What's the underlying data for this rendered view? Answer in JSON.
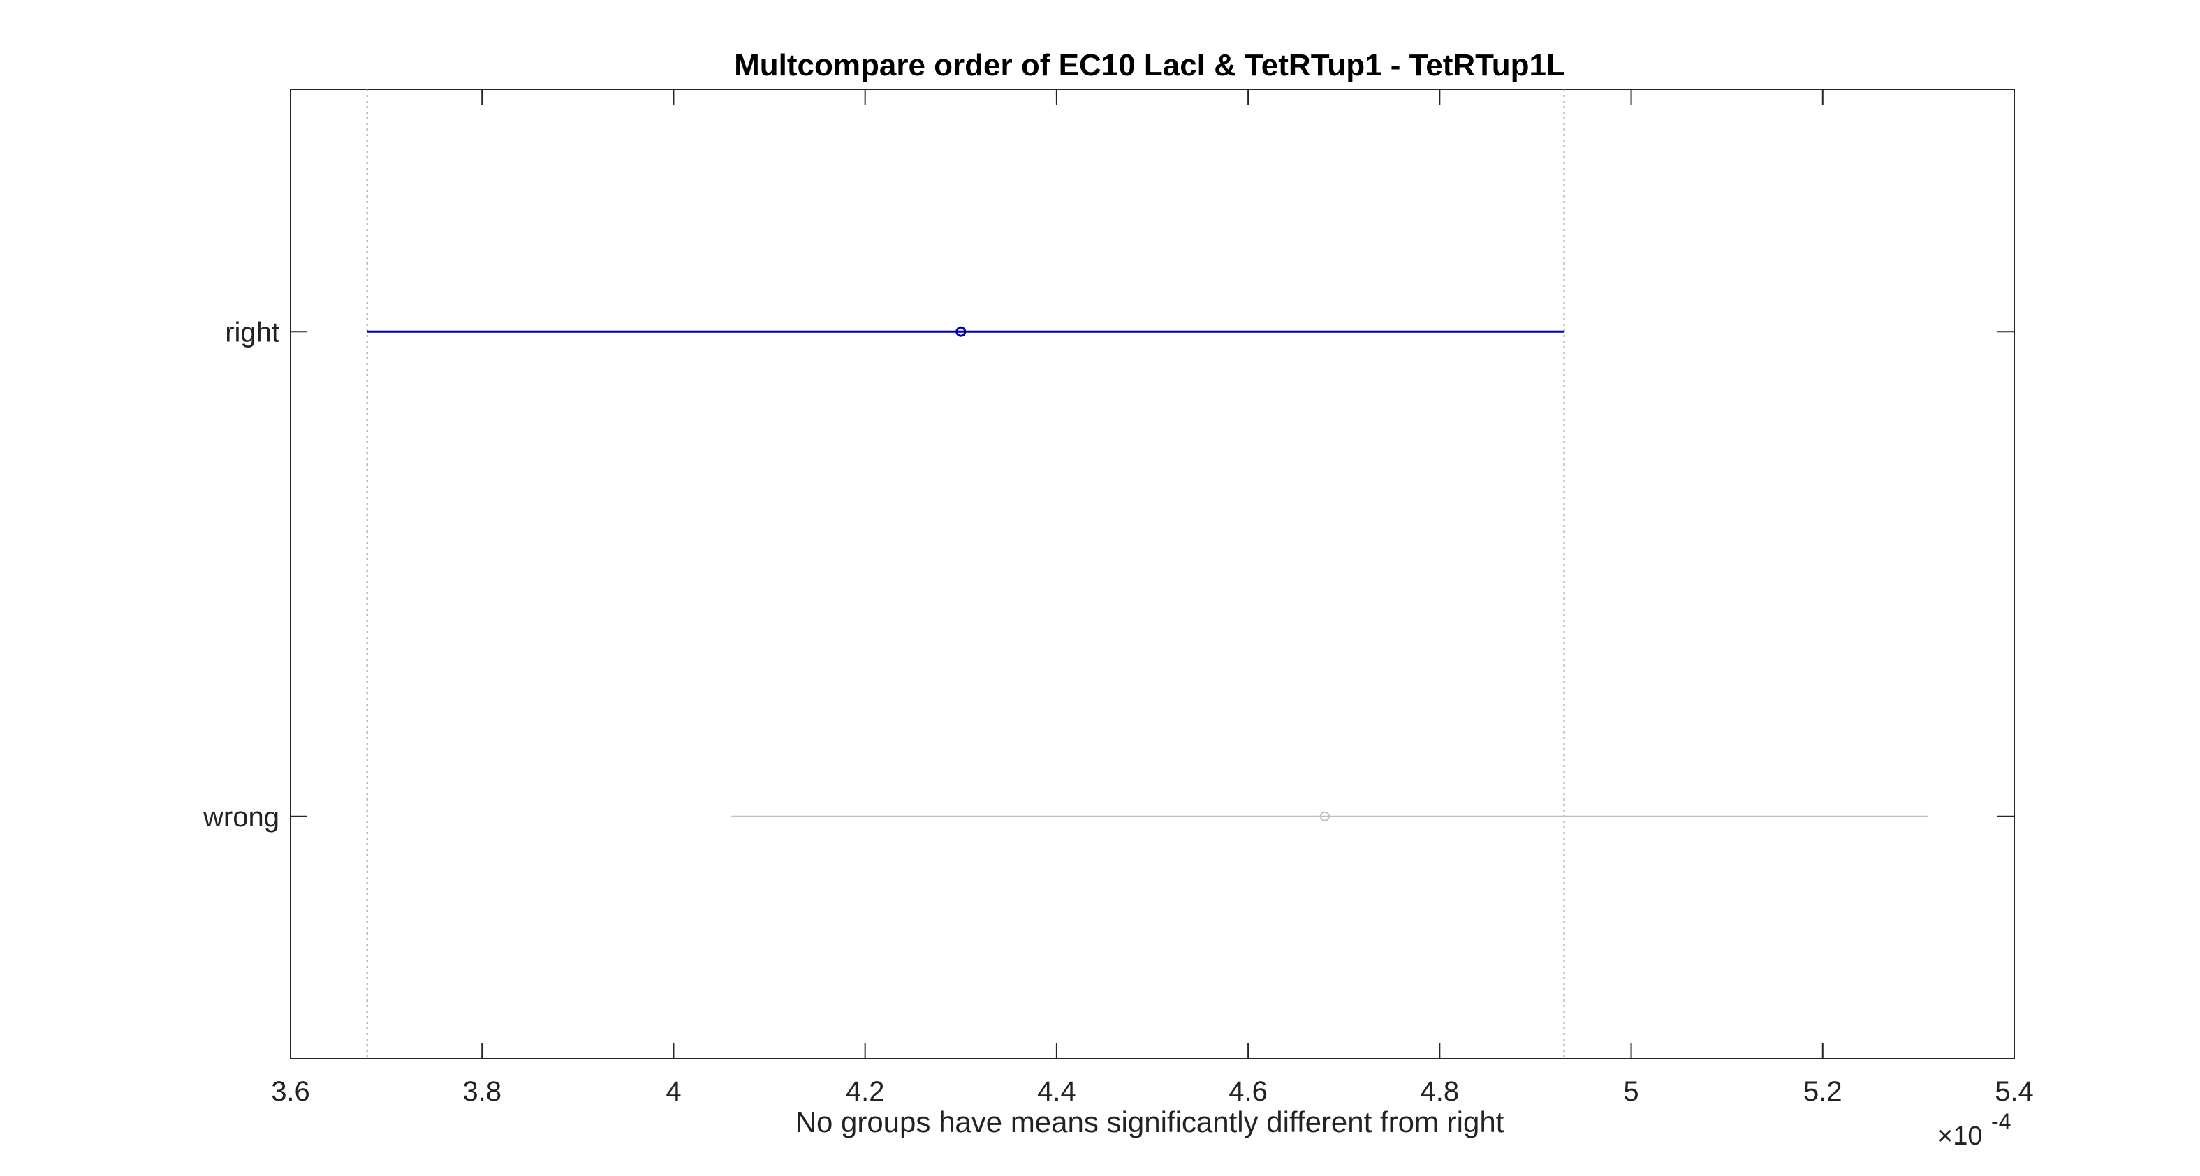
{
  "chart_data": {
    "type": "scatter",
    "subtype": "multcompare-interval",
    "title": "Multcompare order of EC10 LacI & TetRTup1 - TetRTup1L",
    "xlabel": "No groups have means significantly different from right",
    "ylabel": "",
    "xlim": [
      0.00036,
      0.00054
    ],
    "x_ticks": [
      0.00036,
      0.00038,
      0.0004,
      0.00042,
      0.00044,
      0.00046,
      0.00048,
      0.0005,
      0.00052,
      0.00054
    ],
    "x_tick_labels": [
      "3.6",
      "3.8",
      "4",
      "4.2",
      "4.4",
      "4.6",
      "4.8",
      "5",
      "5.2",
      "5.4"
    ],
    "exponent_label": {
      "base": "×10",
      "power": "-4"
    },
    "categories": [
      "right",
      "wrong"
    ],
    "groups": [
      {
        "name": "right",
        "mean": 0.00043,
        "lower": 0.000368,
        "upper": 0.000493,
        "color": "#0000aa",
        "highlighted": true
      },
      {
        "name": "wrong",
        "mean": 0.000468,
        "lower": 0.000406,
        "upper": 0.000531,
        "color": "#c0c0c0",
        "highlighted": false
      }
    ],
    "reference_lines": [
      0.000368,
      0.000493
    ],
    "grid": false,
    "box": true
  }
}
